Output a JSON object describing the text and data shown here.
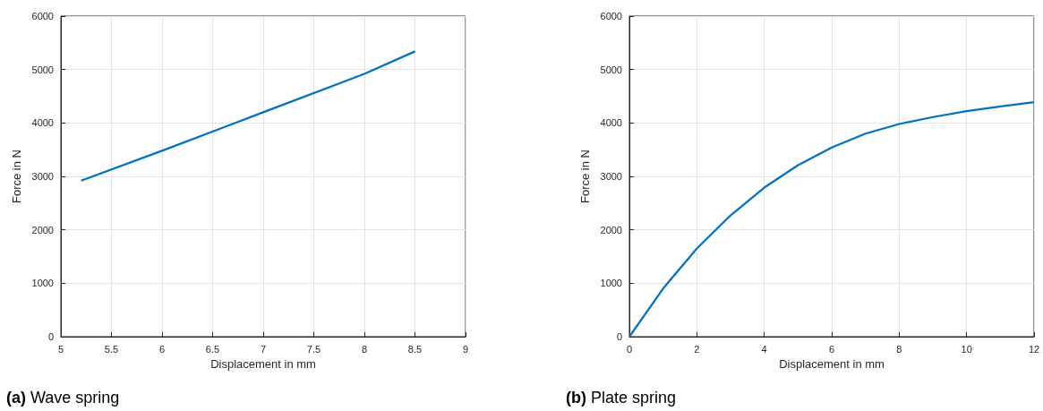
{
  "chart_data": [
    {
      "type": "line",
      "title": "(a) Wave spring",
      "xlabel": "Displacement in mm",
      "ylabel": "Force in N",
      "x": [
        5.2,
        6,
        7,
        8,
        8.5
      ],
      "series": [
        {
          "color": "#0072bd",
          "values": [
            2920,
            3480,
            4200,
            4920,
            5340
          ]
        }
      ],
      "xlim": [
        5,
        9
      ],
      "xticks": [
        5,
        5.5,
        6,
        6.5,
        7,
        7.5,
        8,
        8.5,
        9
      ],
      "ylim": [
        0,
        6000
      ],
      "yticks": [
        0,
        1000,
        2000,
        3000,
        4000,
        5000,
        6000
      ],
      "grid": true,
      "marker": "none",
      "line_style": "solid"
    },
    {
      "type": "line",
      "title": "(b) Plate spring",
      "xlabel": "Displacement in mm",
      "ylabel": "Force in N",
      "x": [
        0,
        1,
        2,
        3,
        4,
        5,
        6,
        7,
        8,
        9,
        10,
        11,
        12
      ],
      "series": [
        {
          "color": "#0072bd",
          "values": [
            0,
            900,
            1650,
            2270,
            2790,
            3210,
            3540,
            3800,
            3980,
            4110,
            4220,
            4310,
            4390
          ]
        }
      ],
      "xlim": [
        0,
        12
      ],
      "xticks": [
        0,
        2,
        4,
        6,
        8,
        10,
        12
      ],
      "ylim": [
        0,
        6000
      ],
      "yticks": [
        0,
        1000,
        2000,
        3000,
        4000,
        5000,
        6000
      ],
      "grid": true,
      "marker": "none",
      "line_style": "solid"
    }
  ]
}
